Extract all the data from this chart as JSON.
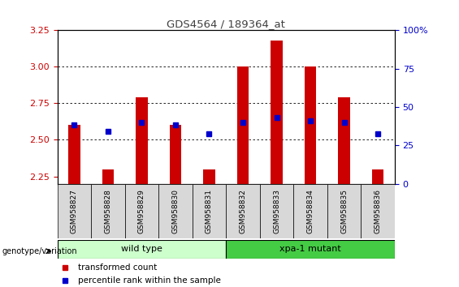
{
  "title": "GDS4564 / 189364_at",
  "samples": [
    "GSM958827",
    "GSM958828",
    "GSM958829",
    "GSM958830",
    "GSM958831",
    "GSM958832",
    "GSM958833",
    "GSM958834",
    "GSM958835",
    "GSM958836"
  ],
  "red_top": [
    2.6,
    2.3,
    2.79,
    2.6,
    2.3,
    3.0,
    3.18,
    3.0,
    2.79,
    2.3
  ],
  "blue_val": [
    2.6,
    2.56,
    2.62,
    2.6,
    2.54,
    2.62,
    2.65,
    2.63,
    2.62,
    2.54
  ],
  "ylim": [
    2.2,
    3.25
  ],
  "yticks": [
    2.25,
    2.5,
    2.75,
    3.0,
    3.25
  ],
  "right_yticks": [
    0,
    25,
    50,
    75,
    100
  ],
  "right_ytick_labels": [
    "0",
    "25",
    "50",
    "75",
    "100%"
  ],
  "groups": [
    {
      "label": "wild type",
      "start": 0,
      "end": 5,
      "color": "#ccffcc"
    },
    {
      "label": "xpa-1 mutant",
      "start": 5,
      "end": 10,
      "color": "#44cc44"
    }
  ],
  "bar_color_red": "#cc0000",
  "bar_color_blue": "#0000cc",
  "bg_color": "#d8d8d8",
  "title_color": "#404040",
  "left_tick_color": "#cc0000",
  "right_tick_color": "#0000cc"
}
